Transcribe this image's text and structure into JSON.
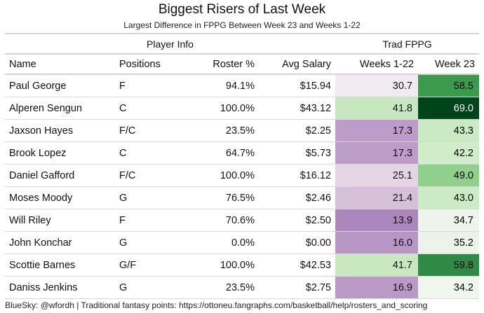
{
  "title": "Biggest Risers of Last Week",
  "subtitle": "Largest Difference in FPPG Between Week 23 and Weeks 1-22",
  "spanners": {
    "player_info": "Player Info",
    "trad_fppg": "Trad FPPG"
  },
  "columns": {
    "name": "Name",
    "positions": "Positions",
    "roster": "Roster %",
    "salary": "Avg Salary",
    "weeks": "Weeks 1-22",
    "week23": "Week 23"
  },
  "rows": [
    {
      "name": "Paul George",
      "positions": "F",
      "roster": "94.1%",
      "salary": "$15.94",
      "weeks": "30.7",
      "week23": "58.5",
      "weeks_bg": "#f1ebf1",
      "week23_bg": "#3b9a4e",
      "week23_fg": "#000000"
    },
    {
      "name": "Alperen Sengun",
      "positions": "C",
      "roster": "100.0%",
      "salary": "$43.12",
      "weeks": "41.8",
      "week23": "69.0",
      "weeks_bg": "#c7e8bf",
      "week23_bg": "#00441b",
      "week23_fg": "#ffffff"
    },
    {
      "name": "Jaxson Hayes",
      "positions": "F/C",
      "roster": "23.5%",
      "salary": "$2.25",
      "weeks": "17.3",
      "week23": "43.3",
      "weeks_bg": "#bd9cc9",
      "week23_bg": "#c9eac2",
      "week23_fg": "#000000"
    },
    {
      "name": "Brook Lopez",
      "positions": "C",
      "roster": "64.7%",
      "salary": "$5.73",
      "weeks": "17.3",
      "week23": "42.2",
      "weeks_bg": "#bd9cc9",
      "week23_bg": "#d0ecc9",
      "week23_fg": "#000000"
    },
    {
      "name": "Daniel Gafford",
      "positions": "F/C",
      "roster": "100.0%",
      "salary": "$16.12",
      "weeks": "25.1",
      "week23": "49.0",
      "weeks_bg": "#e4d5e5",
      "week23_bg": "#90d08c",
      "week23_fg": "#000000"
    },
    {
      "name": "Moses Moody",
      "positions": "G",
      "roster": "76.5%",
      "salary": "$2.46",
      "weeks": "21.4",
      "week23": "43.0",
      "weeks_bg": "#d5bfd9",
      "week23_bg": "#cbebc4",
      "week23_fg": "#000000"
    },
    {
      "name": "Will Riley",
      "positions": "F",
      "roster": "70.6%",
      "salary": "$2.50",
      "weeks": "13.9",
      "week23": "34.7",
      "weeks_bg": "#ac87bd",
      "week23_bg": "#eef4ec",
      "week23_fg": "#000000"
    },
    {
      "name": "John Konchar",
      "positions": "G",
      "roster": "0.0%",
      "salary": "$0.00",
      "weeks": "16.0",
      "week23": "35.2",
      "weeks_bg": "#b795c5",
      "week23_bg": "#ecf4e9",
      "week23_fg": "#000000"
    },
    {
      "name": "Scottie Barnes",
      "positions": "G/F",
      "roster": "100.0%",
      "salary": "$42.53",
      "weeks": "41.7",
      "week23": "59.8",
      "weeks_bg": "#c8e9c0",
      "week23_bg": "#2e8a44",
      "week23_fg": "#000000"
    },
    {
      "name": "Daniss Jenkins",
      "positions": "G",
      "roster": "23.5%",
      "salary": "$2.75",
      "weeks": "16.9",
      "week23": "34.2",
      "weeks_bg": "#ba99c7",
      "week23_bg": "#f0f5ee",
      "week23_fg": "#000000"
    }
  ],
  "footer": "BlueSky: @wfordh | Traditional fantasy points: https://ottoneu.fangraphs.com/basketball/help/rosters_and_scoring"
}
